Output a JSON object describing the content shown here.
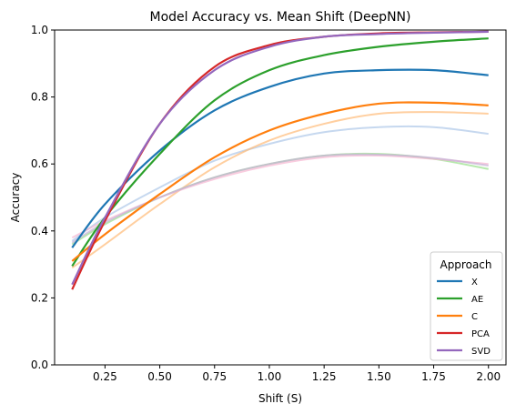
{
  "chart_data": {
    "type": "line",
    "title": "Model Accuracy vs. Mean Shift (DeepNN)",
    "xlabel": "Shift (S)",
    "ylabel": "Accuracy",
    "xlim": [
      0.02,
      2.08
    ],
    "ylim": [
      0.0,
      1.0
    ],
    "xticks": [
      "0.25",
      "0.50",
      "0.75",
      "1.00",
      "1.25",
      "1.50",
      "1.75",
      "2.00"
    ],
    "xtick_values": [
      0.25,
      0.5,
      0.75,
      1.0,
      1.25,
      1.5,
      1.75,
      2.0
    ],
    "yticks": [
      "0.0",
      "0.2",
      "0.4",
      "0.6",
      "0.8",
      "1.0"
    ],
    "ytick_values": [
      0.0,
      0.2,
      0.4,
      0.6,
      0.8,
      1.0
    ],
    "grid": false,
    "legend": {
      "title": "Approach",
      "placement": "lower-right"
    },
    "x": [
      0.1,
      0.25,
      0.5,
      0.75,
      1.0,
      1.25,
      1.5,
      1.75,
      2.0
    ],
    "series": [
      {
        "name": "X",
        "color": "#1f77b4",
        "values": [
          0.35,
          0.48,
          0.64,
          0.76,
          0.83,
          0.87,
          0.88,
          0.88,
          0.865
        ]
      },
      {
        "name": "AE",
        "color": "#2ca02c",
        "values": [
          0.295,
          0.44,
          0.63,
          0.79,
          0.88,
          0.925,
          0.95,
          0.965,
          0.975
        ]
      },
      {
        "name": "C",
        "color": "#ff7f0e",
        "values": [
          0.31,
          0.39,
          0.51,
          0.62,
          0.7,
          0.75,
          0.78,
          0.783,
          0.775
        ]
      },
      {
        "name": "PCA",
        "color": "#d62728",
        "values": [
          0.225,
          0.43,
          0.72,
          0.89,
          0.955,
          0.98,
          0.99,
          0.993,
          0.995
        ]
      },
      {
        "name": "SVD",
        "color": "#9467bd",
        "values": [
          0.24,
          0.44,
          0.72,
          0.88,
          0.95,
          0.98,
          0.988,
          0.992,
          0.995
        ]
      }
    ],
    "faded_series": [
      {
        "color": "#aec7e8",
        "values": [
          0.37,
          0.44,
          0.53,
          0.61,
          0.66,
          0.695,
          0.71,
          0.71,
          0.69
        ]
      },
      {
        "color": "#ffbb78",
        "values": [
          0.29,
          0.36,
          0.48,
          0.59,
          0.67,
          0.72,
          0.75,
          0.755,
          0.75
        ]
      },
      {
        "color": "#98df8a",
        "values": [
          0.36,
          0.42,
          0.5,
          0.56,
          0.6,
          0.625,
          0.63,
          0.615,
          0.585
        ]
      },
      {
        "color": "#f7b6d2",
        "values": [
          0.38,
          0.43,
          0.5,
          0.555,
          0.595,
          0.62,
          0.625,
          0.615,
          0.6
        ]
      },
      {
        "color": "#c5b0d5",
        "values": [
          0.365,
          0.425,
          0.5,
          0.56,
          0.6,
          0.625,
          0.628,
          0.618,
          0.595
        ]
      }
    ]
  }
}
